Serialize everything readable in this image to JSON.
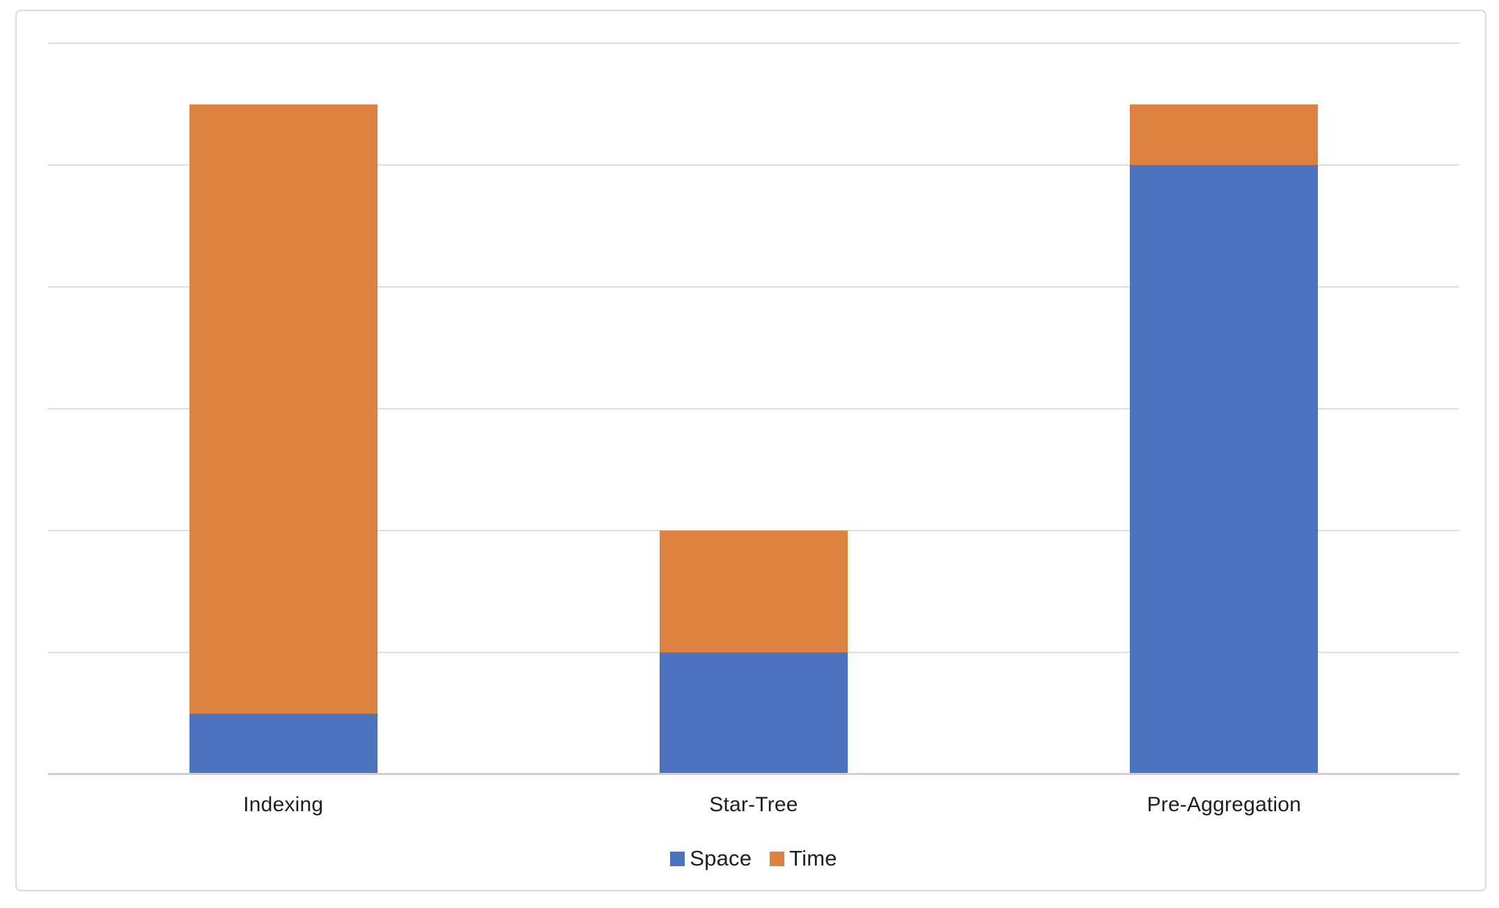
{
  "chart_data": {
    "type": "bar",
    "stacked": true,
    "title": "",
    "xlabel": "",
    "ylabel": "",
    "categories": [
      "Indexing",
      "Star-Tree",
      "Pre-Aggregation"
    ],
    "series": [
      {
        "name": "Space",
        "color": "#4D73BE",
        "values": [
          0.5,
          1,
          5
        ]
      },
      {
        "name": "Time",
        "color": "#DE8241",
        "values": [
          5,
          1,
          0.5
        ]
      }
    ],
    "ylim": [
      0,
      6
    ],
    "y_tick_labels_visible": false,
    "gridlines": {
      "show": true,
      "interval": 1,
      "color": "#DEDEDE"
    },
    "axis_line_color": "#CFCFCF",
    "frame_border_color": "#D9D9D9",
    "label_color": "#1F1F1F",
    "legend": {
      "position": "bottom-center"
    }
  }
}
